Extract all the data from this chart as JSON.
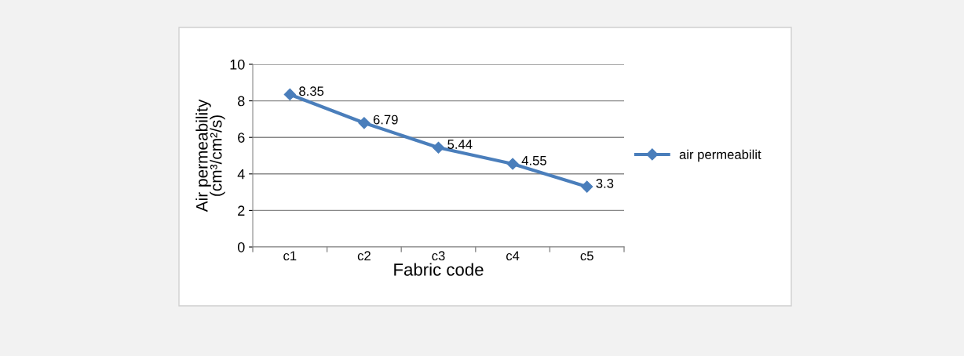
{
  "chart_data": {
    "type": "line",
    "xlabel": "Fabric code",
    "ylabel": "Air permeability\n(cm³/cm²/s)",
    "categories": [
      "c1",
      "c2",
      "c3",
      "c4",
      "c5"
    ],
    "series": [
      {
        "name": "air permeabilit",
        "color": "#4a7ebb",
        "values": [
          8.35,
          6.79,
          5.44,
          4.55,
          3.3
        ]
      }
    ],
    "ylim": [
      0,
      10
    ],
    "yticks": [
      0,
      2,
      4,
      6,
      8,
      10
    ],
    "grid": "y",
    "legend": "right",
    "marker": "diamond",
    "line_style": "solid",
    "data_labels": true
  }
}
